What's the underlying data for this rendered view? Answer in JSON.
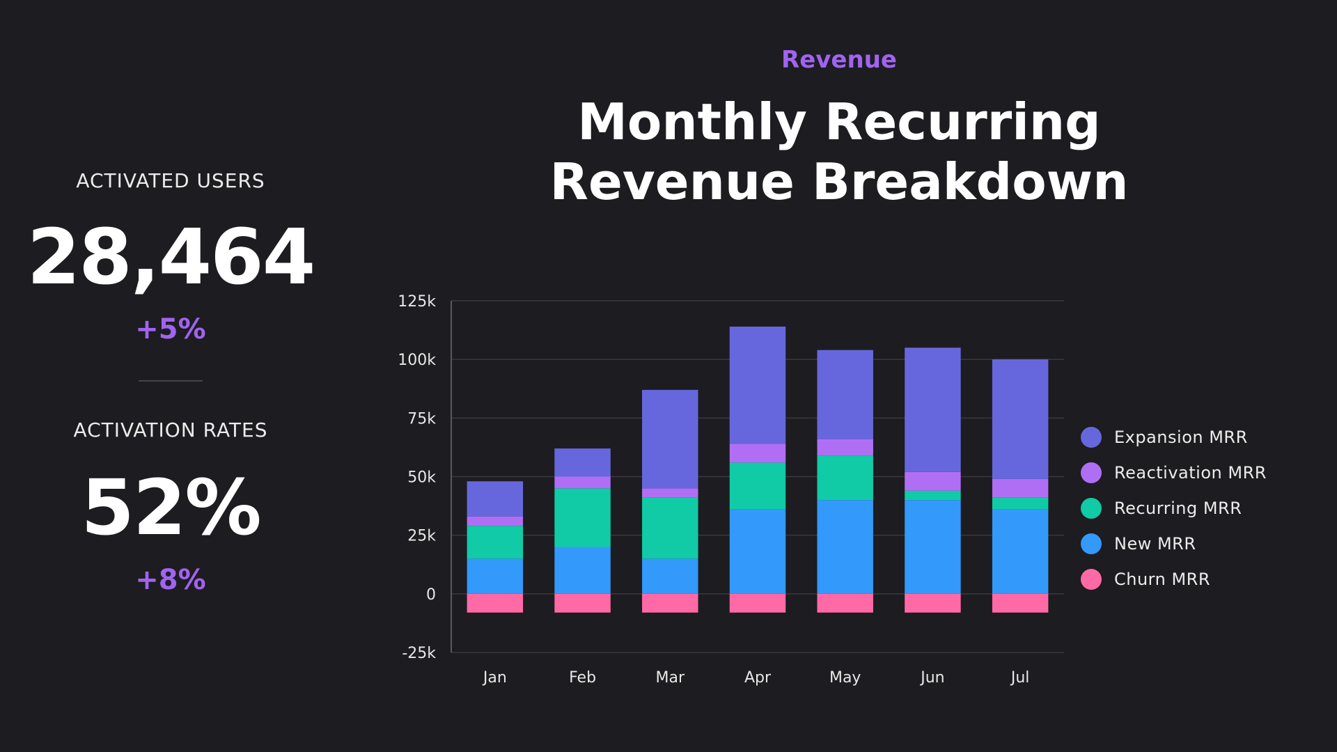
{
  "kpis": {
    "activated_users": {
      "label": "ACTIVATED USERS",
      "value": "28,464",
      "change": "+5%"
    },
    "activation_rates": {
      "label": "ACTIVATION RATES",
      "value": "52%",
      "change": "+8%"
    }
  },
  "header": {
    "eyebrow": "Revenue",
    "title_line1": "Monthly Recurring",
    "title_line2": "Revenue Breakdown"
  },
  "colors": {
    "background": "#1d1c20",
    "accent": "#a064f0",
    "grid": "#3a393f",
    "axis": "#5a5960"
  },
  "chart_data": {
    "type": "bar",
    "stacked": true,
    "categories": [
      "Jan",
      "Feb",
      "Mar",
      "Apr",
      "May",
      "Jun",
      "Jul"
    ],
    "series": [
      {
        "name": "Churn MRR",
        "color": "#ff6aa6",
        "values": [
          -8000,
          -8000,
          -8000,
          -8000,
          -8000,
          -8000,
          -8000
        ]
      },
      {
        "name": "New MRR",
        "color": "#3399fb",
        "values": [
          15000,
          20000,
          15000,
          36000,
          40000,
          40000,
          36000
        ]
      },
      {
        "name": "Recurring MRR",
        "color": "#10cba5",
        "values": [
          14000,
          25000,
          26000,
          20000,
          19000,
          4000,
          5000
        ]
      },
      {
        "name": "Reactivation MRR",
        "color": "#b06ef5",
        "values": [
          4000,
          5000,
          4000,
          8000,
          7000,
          8000,
          8000
        ]
      },
      {
        "name": "Expansion MRR",
        "color": "#6767dd",
        "values": [
          15000,
          12000,
          42000,
          50000,
          38000,
          53000,
          51000
        ]
      }
    ],
    "legend_order": [
      "Expansion MRR",
      "Reactivation MRR",
      "Recurring MRR",
      "New MRR",
      "Churn MRR"
    ],
    "ylim": [
      -25000,
      125000
    ],
    "yticks": [
      -25000,
      0,
      25000,
      50000,
      75000,
      100000,
      125000
    ],
    "ytick_labels": [
      "-25k",
      "0",
      "25k",
      "50k",
      "75k",
      "100k",
      "125k"
    ],
    "grid": true,
    "legend_position": "right"
  }
}
